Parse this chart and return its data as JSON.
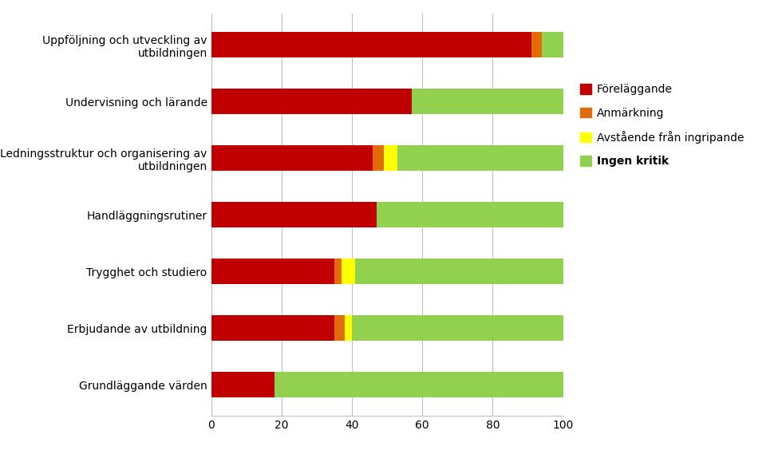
{
  "categories": [
    "Uppföljning och utveckling av\nutbildningen",
    "Undervisning och lärande",
    "Ledningsstruktur och organisering av\nutbildningen",
    "Handläggningsrutiner",
    "Trygghet och studiero",
    "Erbjudande av utbildning",
    "Grundläggande värden"
  ],
  "series": {
    "Föreläggande": [
      91,
      57,
      46,
      47,
      35,
      35,
      18
    ],
    "Anmärkning": [
      3,
      0,
      3,
      0,
      2,
      3,
      0
    ],
    "Avstående från ingripande": [
      0,
      0,
      4,
      0,
      4,
      2,
      0
    ],
    "Ingen kritik": [
      6,
      43,
      47,
      53,
      59,
      60,
      82
    ]
  },
  "colors": {
    "Föreläggande": "#c00000",
    "Anmärkning": "#e36c09",
    "Avstående från ingripande": "#ffff00",
    "Ingen kritik": "#92d050"
  },
  "legend_bold": [
    "Ingen kritik"
  ],
  "xlim": [
    0,
    100
  ],
  "xticks": [
    0,
    20,
    40,
    60,
    80,
    100
  ],
  "bar_height": 0.45,
  "background_color": "#ffffff",
  "grid_color": "#bfbfbf",
  "font_size_labels": 10,
  "font_size_ticks": 10,
  "font_size_legend": 10
}
